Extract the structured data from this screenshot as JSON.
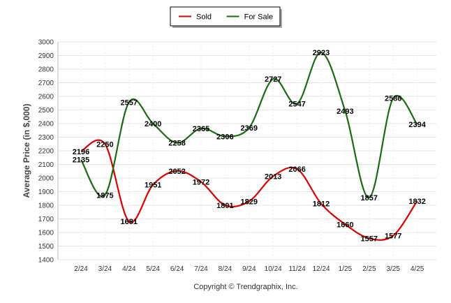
{
  "chart_data": {
    "type": "line",
    "ylabel": "Average Price (in $,000)",
    "ylim": [
      1400,
      3000
    ],
    "yticks": [
      1400,
      1500,
      1600,
      1700,
      1800,
      1900,
      2000,
      2100,
      2200,
      2300,
      2400,
      2500,
      2600,
      2700,
      2800,
      2900,
      3000
    ],
    "categories": [
      "2/24",
      "3/24",
      "4/24",
      "5/24",
      "6/24",
      "7/24",
      "8/24",
      "9/24",
      "10/24",
      "11/24",
      "12/24",
      "1/25",
      "2/25",
      "3/25",
      "4/25"
    ],
    "grid": true,
    "legend_placement": "top-center",
    "series": [
      {
        "name": "Sold",
        "color": "#dd0000",
        "values": [
          2196,
          2250,
          1681,
          1951,
          2052,
          1972,
          1801,
          1829,
          2013,
          2066,
          1812,
          1660,
          1557,
          1577,
          1832
        ]
      },
      {
        "name": "For Sale",
        "color": "#1a6b12",
        "values": [
          2135,
          1875,
          2557,
          2400,
          2258,
          2365,
          2306,
          2369,
          2727,
          2547,
          2923,
          2493,
          1857,
          2586,
          2394
        ]
      }
    ]
  },
  "footer": "Copyright © Trendgraphix, Inc."
}
